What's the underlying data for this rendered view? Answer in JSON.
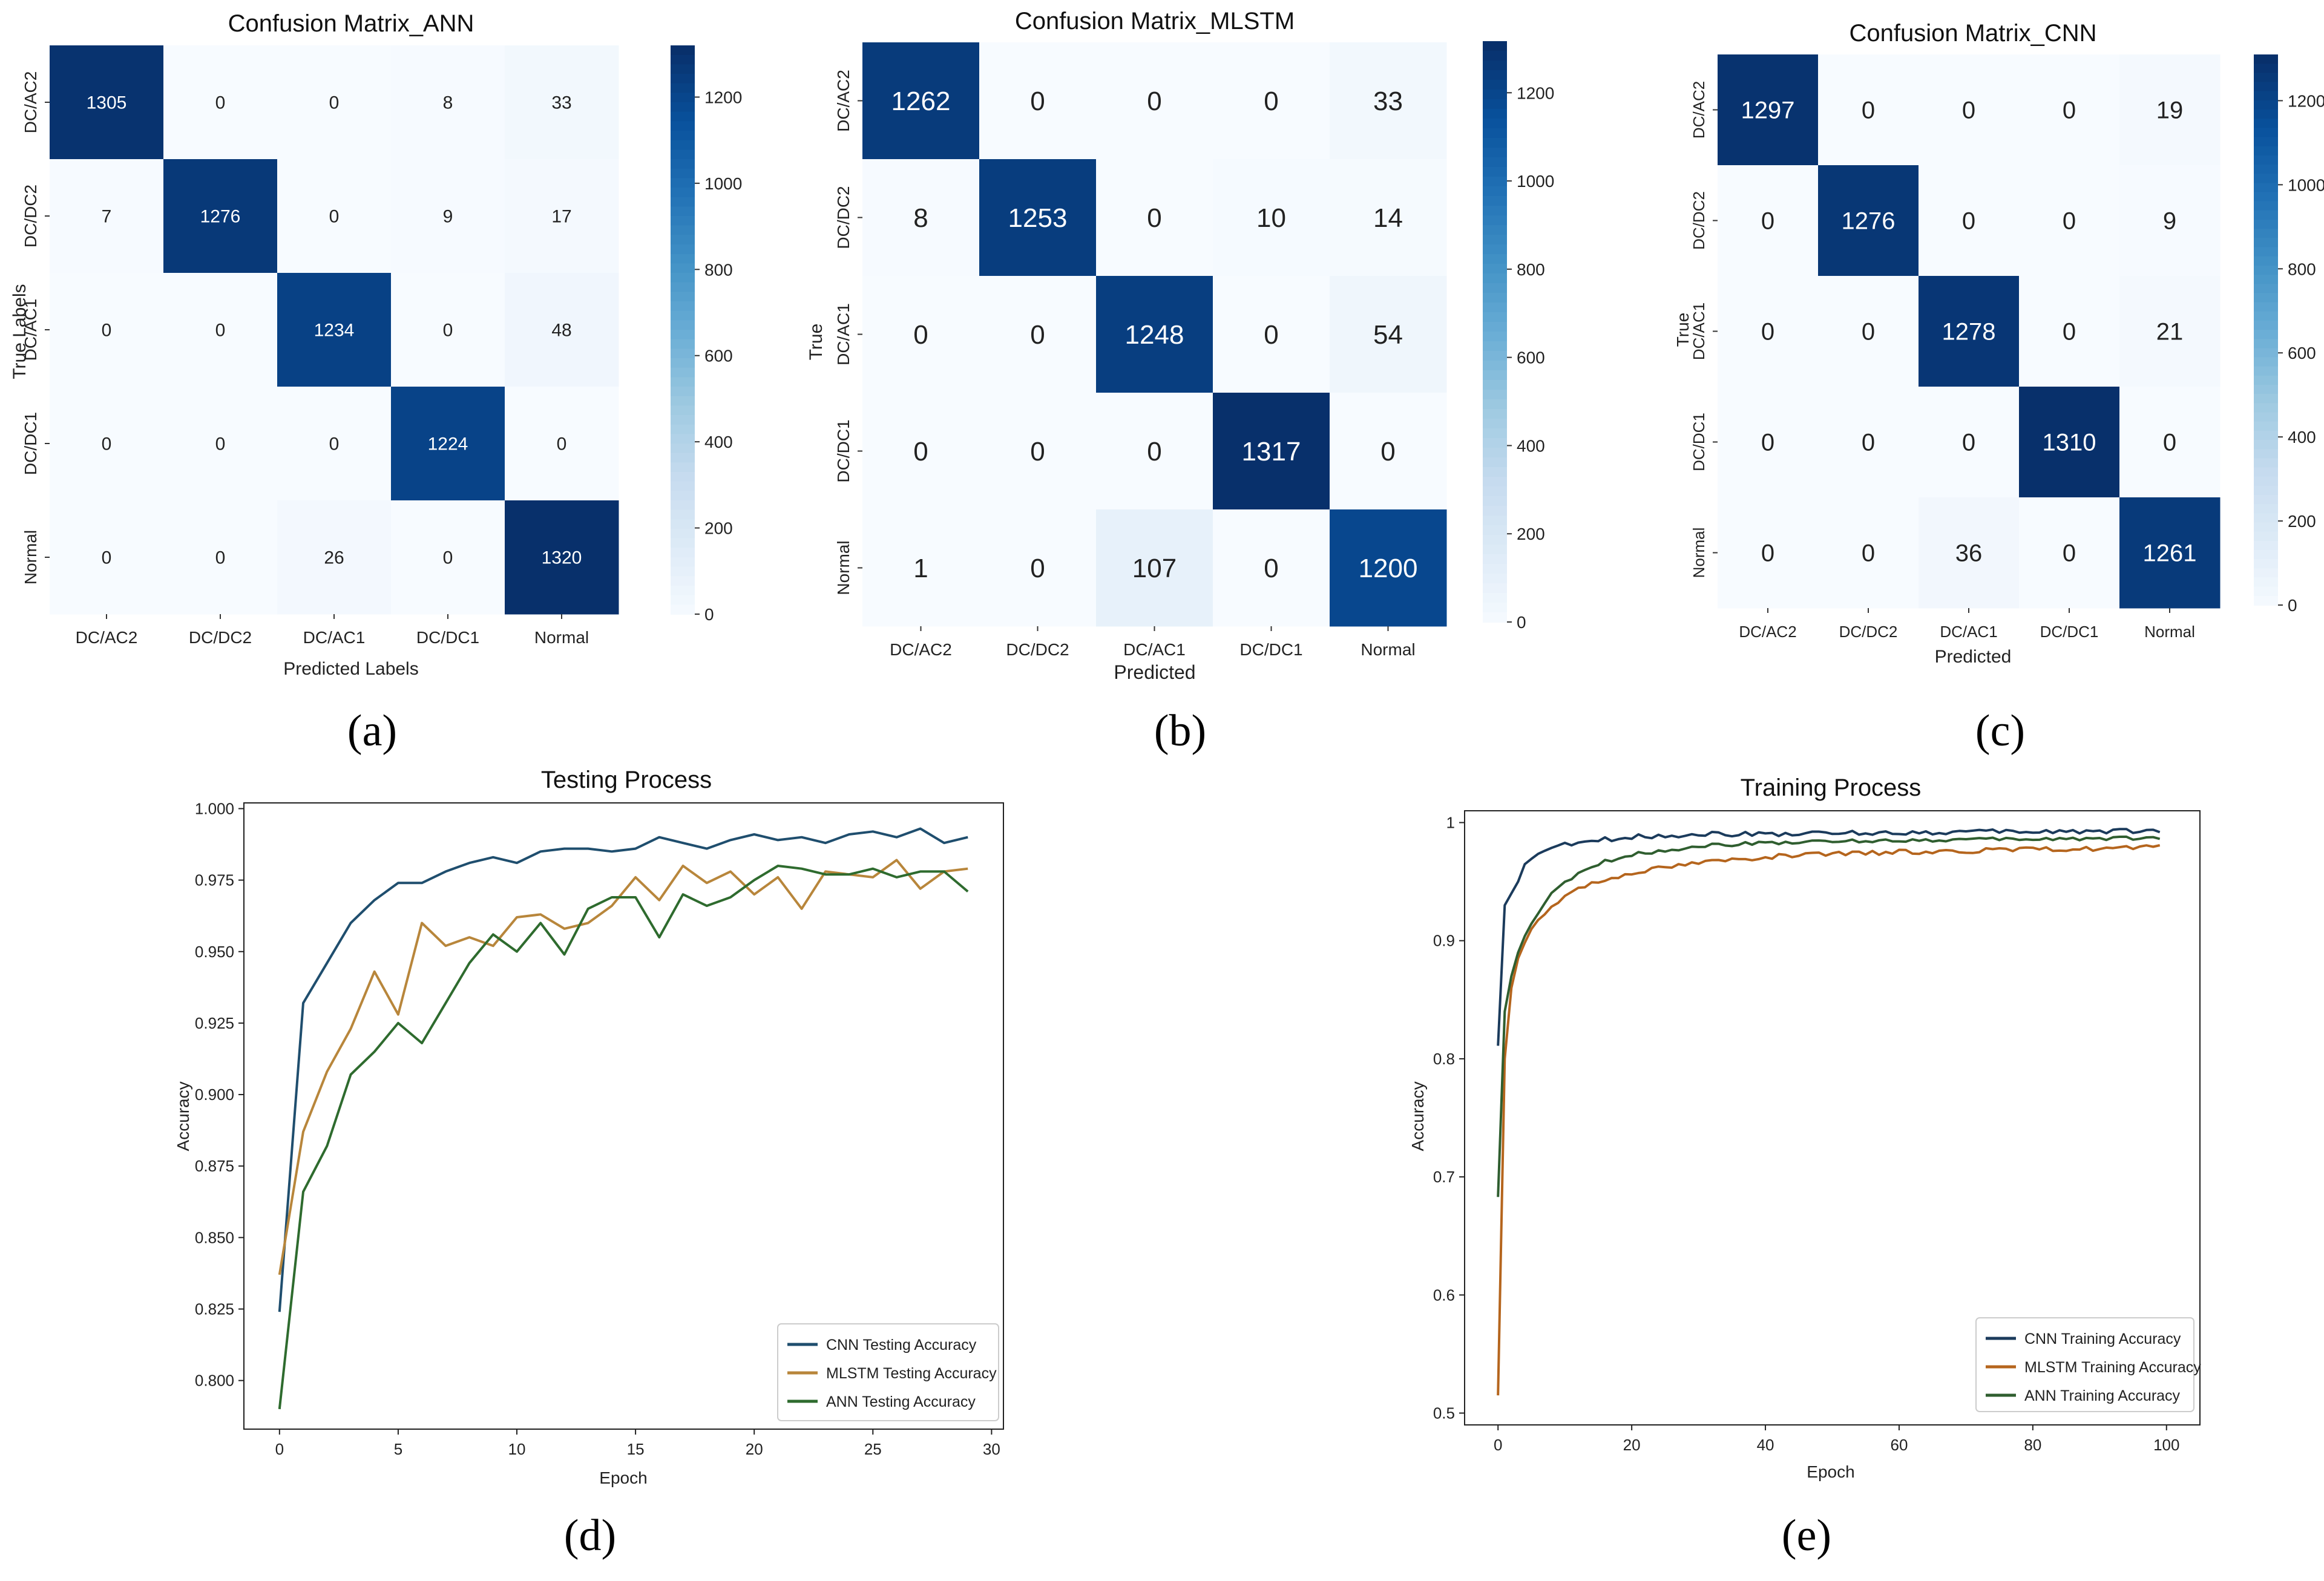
{
  "chart_data": [
    {
      "type": "heatmap",
      "panel": "(a)",
      "title": "Confusion Matrix_ANN",
      "xlabel": "Predicted Labels",
      "ylabel": "True Labels",
      "x_categories": [
        "DC/AC2",
        "DC/DC2",
        "DC/AC1",
        "DC/DC1",
        "Normal"
      ],
      "y_categories": [
        "DC/AC2",
        "DC/DC2",
        "DC/AC1",
        "DC/DC1",
        "Normal"
      ],
      "values": [
        [
          1305,
          0,
          0,
          8,
          33
        ],
        [
          7,
          1276,
          0,
          9,
          17
        ],
        [
          0,
          0,
          1234,
          0,
          48
        ],
        [
          0,
          0,
          0,
          1224,
          0
        ],
        [
          0,
          0,
          26,
          0,
          1320
        ]
      ],
      "colorbar": {
        "min": 0,
        "max": 1320,
        "ticks": [
          0,
          200,
          400,
          600,
          800,
          1000,
          1200
        ]
      },
      "colormap": "Blues"
    },
    {
      "type": "heatmap",
      "panel": "(b)",
      "title": "Confusion Matrix_MLSTM",
      "xlabel": "Predicted",
      "ylabel": "True",
      "x_categories": [
        "DC/AC2",
        "DC/DC2",
        "DC/AC1",
        "DC/DC1",
        "Normal"
      ],
      "y_categories": [
        "DC/AC2",
        "DC/DC2",
        "DC/AC1",
        "DC/DC1",
        "Normal"
      ],
      "values": [
        [
          1262,
          0,
          0,
          0,
          33
        ],
        [
          8,
          1253,
          0,
          10,
          14
        ],
        [
          0,
          0,
          1248,
          0,
          54
        ],
        [
          0,
          0,
          0,
          1317,
          0
        ],
        [
          1,
          0,
          107,
          0,
          1200
        ]
      ],
      "colorbar": {
        "min": 0,
        "max": 1317,
        "ticks": [
          0,
          200,
          400,
          600,
          800,
          1000,
          1200
        ]
      },
      "colormap": "Blues"
    },
    {
      "type": "heatmap",
      "panel": "(c)",
      "title": "Confusion Matrix_CNN",
      "xlabel": "Predicted",
      "ylabel": "True",
      "x_categories": [
        "DC/AC2",
        "DC/DC2",
        "DC/AC1",
        "DC/DC1",
        "Normal"
      ],
      "y_categories": [
        "DC/AC2",
        "DC/DC2",
        "DC/AC1",
        "DC/DC1",
        "Normal"
      ],
      "values": [
        [
          1297,
          0,
          0,
          0,
          19
        ],
        [
          0,
          1276,
          0,
          0,
          9
        ],
        [
          0,
          0,
          1278,
          0,
          21
        ],
        [
          0,
          0,
          0,
          1310,
          0
        ],
        [
          0,
          0,
          36,
          0,
          1261
        ]
      ],
      "colorbar": {
        "min": 0,
        "max": 1310,
        "ticks": [
          0,
          200,
          400,
          600,
          800,
          1000,
          1200
        ]
      },
      "colormap": "Blues"
    },
    {
      "type": "line",
      "panel": "(d)",
      "title": "Testing Process",
      "xlabel": "Epoch",
      "ylabel": "Accuracy",
      "xlim": [
        -1.5,
        30.5
      ],
      "ylim": [
        0.783,
        1.002
      ],
      "xticks": [
        0,
        5,
        10,
        15,
        20,
        25,
        30
      ],
      "yticks": [
        0.8,
        0.825,
        0.85,
        0.875,
        0.9,
        0.925,
        0.95,
        0.975,
        1.0
      ],
      "ytick_labels": [
        "0.800",
        "0.825",
        "0.850",
        "0.875",
        "0.900",
        "0.925",
        "0.950",
        "0.975",
        "1.000"
      ],
      "legend_position": "lower-right",
      "x": [
        0,
        1,
        2,
        3,
        4,
        5,
        6,
        7,
        8,
        9,
        10,
        11,
        12,
        13,
        14,
        15,
        16,
        17,
        18,
        19,
        20,
        21,
        22,
        23,
        24,
        25,
        26,
        27,
        28,
        29
      ],
      "series": [
        {
          "name": "CNN Testing Accuracy",
          "color": "#1f4e6e",
          "values": [
            0.824,
            0.932,
            0.946,
            0.96,
            0.968,
            0.974,
            0.974,
            0.978,
            0.981,
            0.983,
            0.981,
            0.985,
            0.986,
            0.986,
            0.985,
            0.986,
            0.99,
            0.988,
            0.986,
            0.989,
            0.991,
            0.989,
            0.99,
            0.988,
            0.991,
            0.992,
            0.99,
            0.993,
            0.988,
            0.99
          ]
        },
        {
          "name": "MLSTM Testing Accuracy",
          "color": "#b8863b",
          "values": [
            0.837,
            0.887,
            0.908,
            0.923,
            0.943,
            0.928,
            0.96,
            0.952,
            0.955,
            0.952,
            0.962,
            0.963,
            0.958,
            0.96,
            0.966,
            0.976,
            0.968,
            0.98,
            0.974,
            0.978,
            0.97,
            0.976,
            0.965,
            0.978,
            0.977,
            0.976,
            0.982,
            0.972,
            0.978,
            0.979
          ]
        },
        {
          "name": "ANN Testing Accuracy",
          "color": "#2e6b2e",
          "values": [
            0.79,
            0.866,
            0.882,
            0.907,
            0.915,
            0.925,
            0.918,
            0.932,
            0.946,
            0.956,
            0.95,
            0.96,
            0.949,
            0.965,
            0.969,
            0.969,
            0.955,
            0.97,
            0.966,
            0.969,
            0.975,
            0.98,
            0.979,
            0.977,
            0.977,
            0.979,
            0.976,
            0.978,
            0.978,
            0.971
          ]
        }
      ]
    },
    {
      "type": "line",
      "panel": "(e)",
      "title": "Training Process",
      "xlabel": "Epoch",
      "ylabel": "Accuracy",
      "xlim": [
        -5,
        105
      ],
      "ylim": [
        0.49,
        1.01
      ],
      "xticks": [
        0,
        20,
        40,
        60,
        80,
        100
      ],
      "yticks": [
        0.5,
        0.6,
        0.7,
        0.8,
        0.9,
        1.0
      ],
      "legend_position": "lower-right",
      "x_range": [
        0,
        99
      ],
      "series": [
        {
          "name": "CNN Training Accuracy",
          "color": "#1b3b5c",
          "keypoints": [
            [
              0,
              0.811
            ],
            [
              1,
              0.93
            ],
            [
              2,
              0.94
            ],
            [
              3,
              0.95
            ],
            [
              4,
              0.963
            ],
            [
              5,
              0.97
            ],
            [
              6,
              0.974
            ],
            [
              8,
              0.978
            ],
            [
              10,
              0.981
            ],
            [
              15,
              0.985
            ],
            [
              20,
              0.988
            ],
            [
              30,
              0.99
            ],
            [
              50,
              0.991
            ],
            [
              70,
              0.992
            ],
            [
              99,
              0.993
            ]
          ],
          "noise": 0.002
        },
        {
          "name": "MLSTM Training Accuracy",
          "color": "#b5651d",
          "keypoints": [
            [
              0,
              0.515
            ],
            [
              1,
              0.8
            ],
            [
              2,
              0.86
            ],
            [
              3,
              0.885
            ],
            [
              5,
              0.91
            ],
            [
              8,
              0.93
            ],
            [
              12,
              0.945
            ],
            [
              20,
              0.958
            ],
            [
              30,
              0.966
            ],
            [
              40,
              0.971
            ],
            [
              60,
              0.975
            ],
            [
              80,
              0.977
            ],
            [
              99,
              0.979
            ]
          ],
          "noise": 0.002
        },
        {
          "name": "ANN Training Accuracy",
          "color": "#2f5e2f",
          "keypoints": [
            [
              0,
              0.683
            ],
            [
              1,
              0.84
            ],
            [
              2,
              0.87
            ],
            [
              3,
              0.89
            ],
            [
              5,
              0.915
            ],
            [
              8,
              0.94
            ],
            [
              12,
              0.957
            ],
            [
              16,
              0.967
            ],
            [
              20,
              0.973
            ],
            [
              30,
              0.98
            ],
            [
              40,
              0.983
            ],
            [
              60,
              0.985
            ],
            [
              80,
              0.986
            ],
            [
              99,
              0.987
            ]
          ],
          "noise": 0.0015
        }
      ]
    }
  ],
  "panel_labels": [
    "(a)",
    "(b)",
    "(c)",
    "(d)",
    "(e)"
  ]
}
